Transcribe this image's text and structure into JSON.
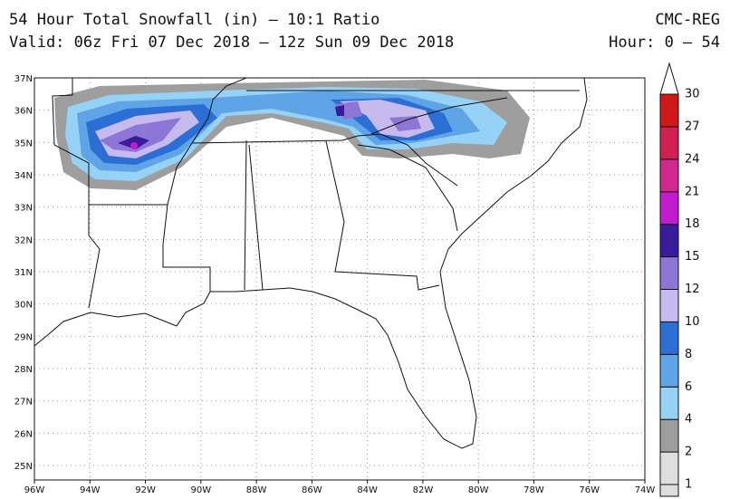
{
  "header": {
    "title": "54 Hour Total Snowfall (in) — 10:1 Ratio",
    "subtitle": "Valid: 06z Fri 07 Dec 2018 — 12z Sun 09 Dec 2018",
    "model": "CMC-REG",
    "hour": "Hour: 0 — 54"
  },
  "map": {
    "lon_labels": [
      "96W",
      "94W",
      "92W",
      "90W",
      "88W",
      "86W",
      "84W",
      "82W",
      "80W",
      "78W",
      "76W",
      "74W"
    ],
    "lat_labels": [
      "37N",
      "36N",
      "35N",
      "34N",
      "33N",
      "32N",
      "31N",
      "30N",
      "29N",
      "28N",
      "27N",
      "26N",
      "25N"
    ]
  },
  "colorbar": {
    "levels": [
      1,
      2,
      4,
      6,
      8,
      10,
      12,
      15,
      18,
      21,
      24,
      27,
      30
    ],
    "colors": [
      "#dedede",
      "#9e9e9e",
      "#96d2f5",
      "#5ea4e6",
      "#2c6fd4",
      "#c6baef",
      "#8e76d6",
      "#3a1b9c",
      "#c21bd1",
      "#d2278e",
      "#d11f52",
      "#d01818"
    ]
  }
}
